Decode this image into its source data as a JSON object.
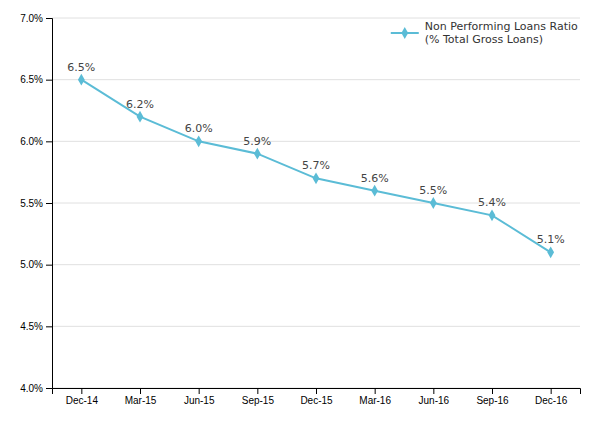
{
  "chart_data": {
    "type": "line",
    "categories": [
      "Dec-14",
      "Mar-15",
      "Jun-15",
      "Sep-15",
      "Dec-15",
      "Mar-16",
      "Jun-16",
      "Sep-16",
      "Dec-16"
    ],
    "series": [
      {
        "name": "Non Performing Loans Ratio\n(% Total Gross Loans)",
        "color": "#5BBCD6",
        "marker": "diamond",
        "values": [
          6.5,
          6.2,
          6.0,
          5.9,
          5.7,
          5.6,
          5.5,
          5.4,
          5.1
        ],
        "value_labels": [
          "6.5%",
          "6.2%",
          "6.0%",
          "5.9%",
          "5.7%",
          "5.6%",
          "5.5%",
          "5.4%",
          "5.1%"
        ]
      }
    ],
    "ylim": [
      4.0,
      7.0
    ],
    "yticks": [
      {
        "value": 4.0,
        "label": "4.0%"
      },
      {
        "value": 4.5,
        "label": "4.5%"
      },
      {
        "value": 5.0,
        "label": "5.0%"
      },
      {
        "value": 5.5,
        "label": "5.5%"
      },
      {
        "value": 6.0,
        "label": "6.0%"
      },
      {
        "value": 6.5,
        "label": "6.5%"
      },
      {
        "value": 7.0,
        "label": "7.0%"
      }
    ],
    "grid": true,
    "legend": "upper right",
    "data_labels": true
  }
}
